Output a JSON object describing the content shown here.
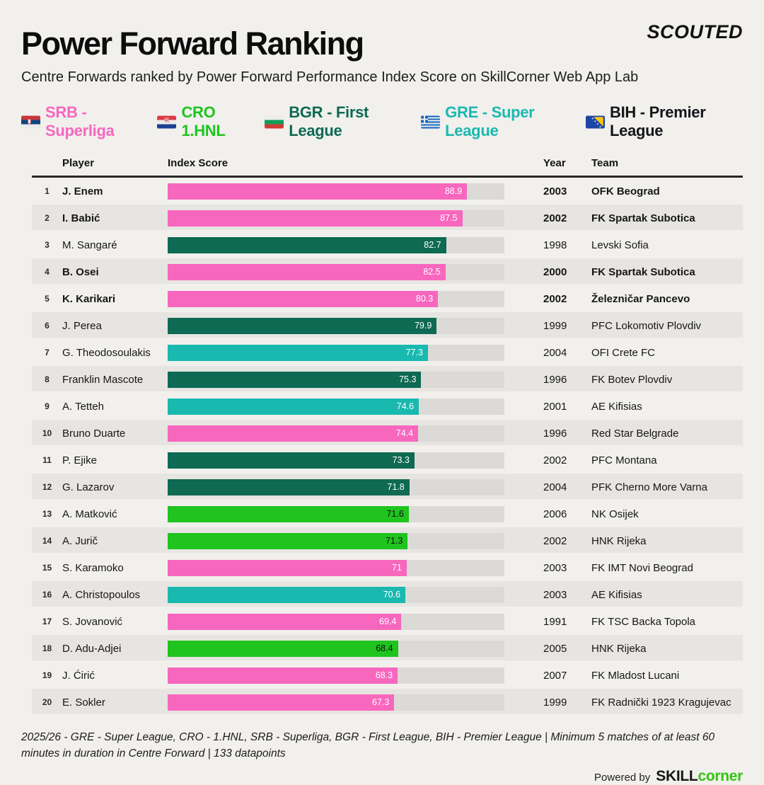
{
  "header": {
    "brand": "SCOUTED",
    "title": "Power Forward Ranking",
    "subtitle": "Centre Forwards ranked by Power Forward Performance Index Score on SkillCorner Web App Lab"
  },
  "legend": {
    "items": [
      {
        "flag": "srb",
        "flag_name": "serbia-flag-icon",
        "label": "SRB - Superliga",
        "color": "#f767be"
      },
      {
        "flag": "cro",
        "flag_name": "croatia-flag-icon",
        "label": "CRO 1.HNL",
        "color": "#1fc41f"
      },
      {
        "flag": "bgr",
        "flag_name": "bulgaria-flag-icon",
        "label": "BGR - First League",
        "color": "#0e6a52"
      },
      {
        "flag": "gre",
        "flag_name": "greece-flag-icon",
        "label": "GRE - Super League",
        "color": "#19b9b0"
      },
      {
        "flag": "bih",
        "flag_name": "bosnia-flag-icon",
        "label": "BIH - Premier League",
        "color": "#15151a"
      }
    ]
  },
  "colors": {
    "srb": "#f767be",
    "cro": "#1fc41f",
    "bgr": "#0e6a52",
    "gre": "#19b9b0",
    "bih": "#15151a",
    "track": "#dcdad6",
    "skillcorner_green": "#35c312"
  },
  "table": {
    "columns": {
      "player": "Player",
      "index_score": "Index Score",
      "year": "Year",
      "team": "Team"
    }
  },
  "chart_data": {
    "type": "bar",
    "orientation": "horizontal",
    "title": "Power Forward Ranking",
    "xlabel": "Index Score",
    "xlim": [
      0,
      100
    ],
    "legend_entries": [
      "SRB - Superliga",
      "CRO 1.HNL",
      "BGR - First League",
      "GRE - Super League",
      "BIH - Premier League"
    ],
    "categories": [
      "J. Enem",
      "I. Babić",
      "M. Sangaré",
      "B. Osei",
      "K. Karikari",
      "J. Perea",
      "G. Theodosoulakis",
      "Franklin Mascote",
      "A. Tetteh",
      "Bruno Duarte",
      "P. Ejike",
      "G. Lazarov",
      "A. Matković",
      "A. Jurič",
      "S. Karamoko",
      "A. Christopoulos",
      "S. Jovanović",
      "D. Adu-Adjei",
      "J. Ćirić",
      "E. Sokler"
    ],
    "values": [
      88.9,
      87.5,
      82.7,
      82.5,
      80.3,
      79.9,
      77.3,
      75.3,
      74.6,
      74.4,
      73.3,
      71.8,
      71.6,
      71.3,
      71,
      70.6,
      69.4,
      68.4,
      68.3,
      67.3
    ],
    "rows": [
      {
        "rank": 1,
        "player": "J. Enem",
        "score": 88.9,
        "year": 2003,
        "team": "OFK Beograd",
        "league": "srb",
        "bold": true
      },
      {
        "rank": 2,
        "player": "I. Babić",
        "score": 87.5,
        "year": 2002,
        "team": "FK Spartak Subotica",
        "league": "srb",
        "bold": true
      },
      {
        "rank": 3,
        "player": "M. Sangaré",
        "score": 82.7,
        "year": 1998,
        "team": "Levski Sofia",
        "league": "bgr",
        "bold": false
      },
      {
        "rank": 4,
        "player": "B. Osei",
        "score": 82.5,
        "year": 2000,
        "team": "FK Spartak Subotica",
        "league": "srb",
        "bold": true
      },
      {
        "rank": 5,
        "player": "K. Karikari",
        "score": 80.3,
        "year": 2002,
        "team": "Železničar Pancevo",
        "league": "srb",
        "bold": true
      },
      {
        "rank": 6,
        "player": "J. Perea",
        "score": 79.9,
        "year": 1999,
        "team": "PFC Lokomotiv Plovdiv",
        "league": "bgr",
        "bold": false
      },
      {
        "rank": 7,
        "player": "G. Theodosoulakis",
        "score": 77.3,
        "year": 2004,
        "team": "OFI Crete FC",
        "league": "gre",
        "bold": false
      },
      {
        "rank": 8,
        "player": "Franklin Mascote",
        "score": 75.3,
        "year": 1996,
        "team": "FK Botev Plovdiv",
        "league": "bgr",
        "bold": false
      },
      {
        "rank": 9,
        "player": "A. Tetteh",
        "score": 74.6,
        "year": 2001,
        "team": "AE Kifisias",
        "league": "gre",
        "bold": false
      },
      {
        "rank": 10,
        "player": "Bruno Duarte",
        "score": 74.4,
        "year": 1996,
        "team": "Red Star Belgrade",
        "league": "srb",
        "bold": false
      },
      {
        "rank": 11,
        "player": "P. Ejike",
        "score": 73.3,
        "year": 2002,
        "team": "PFC Montana",
        "league": "bgr",
        "bold": false
      },
      {
        "rank": 12,
        "player": "G. Lazarov",
        "score": 71.8,
        "year": 2004,
        "team": "PFK Cherno More Varna",
        "league": "bgr",
        "bold": false
      },
      {
        "rank": 13,
        "player": "A. Matković",
        "score": 71.6,
        "year": 2006,
        "team": "NK Osijek",
        "league": "cro",
        "bold": false
      },
      {
        "rank": 14,
        "player": "A. Jurič",
        "score": 71.3,
        "year": 2002,
        "team": "HNK Rijeka",
        "league": "cro",
        "bold": false
      },
      {
        "rank": 15,
        "player": "S. Karamoko",
        "score": 71,
        "year": 2003,
        "team": "FK IMT Novi Beograd",
        "league": "srb",
        "bold": false
      },
      {
        "rank": 16,
        "player": "A. Christopoulos",
        "score": 70.6,
        "year": 2003,
        "team": "AE Kifisias",
        "league": "gre",
        "bold": false
      },
      {
        "rank": 17,
        "player": "S. Jovanović",
        "score": 69.4,
        "year": 1991,
        "team": "FK TSC Backa Topola",
        "league": "srb",
        "bold": false
      },
      {
        "rank": 18,
        "player": "D. Adu-Adjei",
        "score": 68.4,
        "year": 2005,
        "team": "HNK Rijeka",
        "league": "cro",
        "bold": false
      },
      {
        "rank": 19,
        "player": "J. Ćirić",
        "score": 68.3,
        "year": 2007,
        "team": "FK Mladost Lucani",
        "league": "srb",
        "bold": false
      },
      {
        "rank": 20,
        "player": "E. Sokler",
        "score": 67.3,
        "year": 1999,
        "team": "FK Radnički 1923 Kragujevac",
        "league": "srb",
        "bold": false
      }
    ]
  },
  "footer": {
    "note": "2025/26 - GRE - Super League, CRO - 1.HNL, SRB - Superliga, BGR - First League, BIH - Premier League | Minimum 5 matches of at least 60 minutes in duration in Centre Forward | 133 datapoints",
    "powered_by": "Powered by",
    "logo_skill": "SKILL",
    "logo_corner": "corner"
  }
}
